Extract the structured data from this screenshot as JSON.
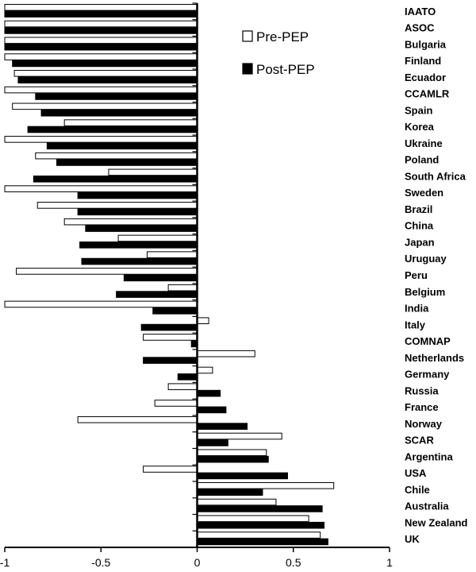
{
  "chart_data": {
    "type": "bar",
    "orientation": "horizontal",
    "categories": [
      "IAATO",
      "ASOC",
      "Bulgaria",
      "Finland",
      "Ecuador",
      "CCAMLR",
      "Spain",
      "Korea",
      "Ukraine",
      "Poland",
      "South Africa",
      "Sweden",
      "Brazil",
      "China",
      "Japan",
      "Uruguay",
      "Peru",
      "Belgium",
      "India",
      "Italy",
      "COMNAP",
      "Netherlands",
      "Germany",
      "Russia",
      "France",
      "Norway",
      "SCAR",
      "Argentina",
      "USA",
      "Chile",
      "Australia",
      "New Zealand",
      "UK"
    ],
    "series": [
      {
        "name": "Pre-PEP",
        "color": "#ffffff",
        "values": [
          -1.0,
          -1.0,
          -1.0,
          -1.0,
          -0.95,
          -1.0,
          -0.96,
          -0.69,
          -1.0,
          -0.84,
          -0.46,
          -1.0,
          -0.83,
          -0.69,
          -0.41,
          -0.26,
          -0.94,
          -0.15,
          -1.0,
          0.06,
          -0.28,
          0.3,
          0.08,
          -0.15,
          -0.22,
          -0.62,
          0.44,
          0.36,
          -0.28,
          0.71,
          0.41,
          0.58,
          0.64
        ]
      },
      {
        "name": "Post-PEP",
        "color": "#000000",
        "values": [
          -1.0,
          -1.0,
          -1.0,
          -0.96,
          -0.93,
          -0.84,
          -0.81,
          -0.88,
          -0.78,
          -0.73,
          -0.85,
          -0.62,
          -0.62,
          -0.58,
          -0.61,
          -0.6,
          -0.38,
          -0.42,
          -0.23,
          -0.29,
          -0.03,
          -0.28,
          -0.1,
          0.12,
          0.15,
          0.26,
          0.16,
          0.37,
          0.47,
          0.34,
          0.65,
          0.66,
          0.68
        ]
      }
    ],
    "xlim": [
      -1,
      1
    ],
    "xticks": [
      {
        "value": -1,
        "label": "-1"
      },
      {
        "value": -0.5,
        "label": "-0.5"
      },
      {
        "value": 0,
        "label": "0"
      },
      {
        "value": 0.5,
        "label": "0.5"
      },
      {
        "value": 1,
        "label": "1"
      }
    ],
    "title": "",
    "xlabel": "",
    "ylabel": "",
    "legend": {
      "position": "top-right",
      "entries": [
        {
          "label": "Pre-PEP",
          "color": "#ffffff"
        },
        {
          "label": "Post-PEP",
          "color": "#000000"
        }
      ]
    },
    "grid": false
  }
}
